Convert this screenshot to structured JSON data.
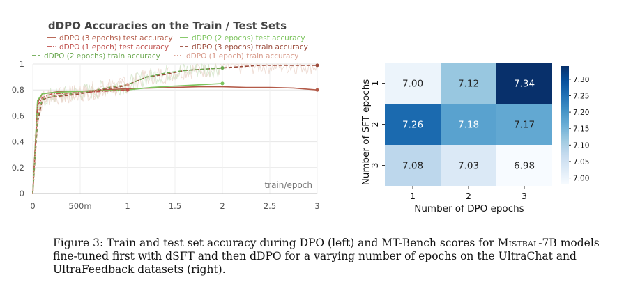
{
  "chart_data": [
    {
      "type": "line",
      "title": "dDPO Accuracies on the Train / Test Sets",
      "xlabel": "train/epoch",
      "ylabel": "",
      "xlim": [
        0,
        3
      ],
      "ylim": [
        0,
        1
      ],
      "x_ticks": [
        0,
        0.5,
        1,
        1.5,
        2,
        2.5,
        3
      ],
      "x_tick_labels": [
        "0",
        "500m",
        "1",
        "1.5",
        "2",
        "2.5",
        "3"
      ],
      "y_ticks": [
        0,
        0.2,
        0.4,
        0.6,
        0.8,
        1
      ],
      "y_tick_labels": [
        "0",
        "0.2",
        "0.4",
        "0.6",
        "0.8",
        "1"
      ],
      "grid": true,
      "legend": [
        "dDPO (3 epochs) test accuracy",
        "dDPO (2 epochs) test accuracy",
        "dDPO (1 epoch) test accuracy",
        "dDPO (3 epochs) train accuracy",
        "dDPO (2 epochs) train accuracy",
        "dDPO (1 epoch) train accuracy"
      ],
      "series": [
        {
          "name": "dDPO (3 epochs) test accuracy",
          "style": "solid",
          "color": "#b35a48",
          "x": [
            0,
            0.05,
            0.1,
            0.2,
            0.3,
            0.5,
            0.75,
            1.0,
            1.25,
            1.5,
            1.75,
            2.0,
            2.25,
            2.5,
            2.75,
            3.0
          ],
          "y": [
            0,
            0.7,
            0.77,
            0.78,
            0.79,
            0.79,
            0.8,
            0.81,
            0.815,
            0.82,
            0.825,
            0.825,
            0.82,
            0.82,
            0.815,
            0.8
          ]
        },
        {
          "name": "dDPO (2 epochs) test accuracy",
          "style": "solid",
          "color": "#7cc45d",
          "x": [
            0,
            0.05,
            0.1,
            0.2,
            0.5,
            1.0,
            1.25,
            1.5,
            1.75,
            2.0
          ],
          "y": [
            0,
            0.72,
            0.77,
            0.78,
            0.79,
            0.8,
            0.82,
            0.83,
            0.84,
            0.85
          ]
        },
        {
          "name": "dDPO (1 epoch) test accuracy",
          "style": "dashdot",
          "color": "#c0504d",
          "x": [
            0,
            0.05,
            0.1,
            0.2,
            0.5,
            0.75,
            1.0
          ],
          "y": [
            0,
            0.68,
            0.74,
            0.77,
            0.78,
            0.79,
            0.8
          ]
        },
        {
          "name": "dDPO (3 epochs) train accuracy",
          "style": "dashed",
          "color": "#9b4a3a",
          "x": [
            0,
            0.05,
            0.1,
            0.15,
            0.25,
            0.4,
            0.5,
            0.7,
            0.9,
            1.0,
            1.1,
            1.2,
            1.4,
            1.6,
            1.8,
            2.0,
            2.2,
            2.4,
            2.6,
            2.8,
            3.0
          ],
          "y": [
            0,
            0.55,
            0.72,
            0.74,
            0.75,
            0.76,
            0.77,
            0.8,
            0.82,
            0.84,
            0.87,
            0.9,
            0.92,
            0.95,
            0.96,
            0.97,
            0.98,
            0.99,
            0.99,
            0.99,
            0.99
          ]
        },
        {
          "name": "dDPO (2 epochs) train accuracy",
          "style": "dashed",
          "color": "#6aa84f",
          "x": [
            0,
            0.05,
            0.1,
            0.2,
            0.4,
            0.6,
            0.8,
            1.0,
            1.1,
            1.2,
            1.4,
            1.6,
            1.8,
            2.0
          ],
          "y": [
            0,
            0.58,
            0.73,
            0.75,
            0.77,
            0.79,
            0.82,
            0.84,
            0.87,
            0.9,
            0.93,
            0.95,
            0.96,
            0.97
          ]
        },
        {
          "name": "dDPO (1 epoch) train accuracy",
          "style": "dotted",
          "color": "#d79a8a",
          "x": [
            0,
            0.05,
            0.1,
            0.2,
            0.4,
            0.6,
            0.8,
            1.0
          ],
          "y": [
            0,
            0.6,
            0.73,
            0.75,
            0.77,
            0.79,
            0.82,
            0.84
          ]
        }
      ]
    },
    {
      "type": "heatmap",
      "title": "",
      "xlabel": "Number of DPO epochs",
      "ylabel": "Number of SFT epochs",
      "x_categories": [
        "1",
        "2",
        "3"
      ],
      "y_categories": [
        "1",
        "2",
        "3"
      ],
      "values": [
        [
          7.0,
          7.12,
          7.34
        ],
        [
          7.26,
          7.18,
          7.17
        ],
        [
          7.08,
          7.03,
          6.98
        ]
      ],
      "value_labels": [
        [
          "7.00",
          "7.12",
          "7.34"
        ],
        [
          "7.26",
          "7.18",
          "7.17"
        ],
        [
          "7.08",
          "7.03",
          "6.98"
        ]
      ],
      "colorbar_range": [
        6.98,
        7.34
      ],
      "colorbar_ticks": [
        7.0,
        7.05,
        7.1,
        7.15,
        7.2,
        7.25,
        7.3
      ],
      "colorbar_tick_labels": [
        "7.00",
        "7.05",
        "7.10",
        "7.15",
        "7.20",
        "7.25",
        "7.30"
      ],
      "colormap": [
        "#f7fbff",
        "#deebf7",
        "#c6dbef",
        "#9ecae1",
        "#6baed6",
        "#4292c6",
        "#2171b5",
        "#08519c",
        "#08306b"
      ]
    }
  ],
  "caption": {
    "prefix": "Figure 3:  Train and test set accuracy during DPO (left) and MT-Bench scores for ",
    "model": "Mistral-7B",
    "suffix": " models fine-tuned first with dSFT and then dDPO for a varying number of epochs on the UltraChat and UltraFeedback datasets (right)."
  }
}
